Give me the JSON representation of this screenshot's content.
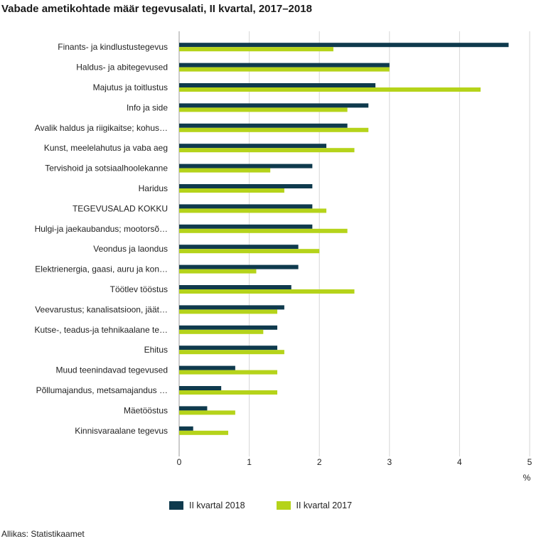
{
  "chart_data": {
    "type": "bar",
    "orientation": "horizontal",
    "title": "Vabade ametikohtade määr tegevusalati, II kvartal, 2017–2018",
    "unit": "%",
    "xlim": [
      0,
      5
    ],
    "xticks": [
      0,
      1,
      2,
      3,
      4,
      5
    ],
    "grid": "vertical",
    "legend_position": "bottom",
    "categories": [
      "Finants- ja kindlustustegevus",
      "Haldus- ja abitegevused",
      "Majutus ja toitlustus",
      "Info ja side",
      "Avalik haldus ja riigikaitse; kohus…",
      "Kunst, meelelahutus ja vaba aeg",
      "Tervishoid ja sotsiaalhoolekanne",
      "Haridus",
      "TEGEVUSALAD KOKKU",
      "Hulgi-ja jaekaubandus; mootorsõ…",
      "Veondus ja laondus",
      "Elektrienergia, gaasi, auru ja kon…",
      "Töötlev tööstus",
      "Veevarustus; kanalisatsioon, jäät…",
      "Kutse-, teadus-ja tehnikaalane te…",
      "Ehitus",
      "Muud teenindavad tegevused",
      "Põllumajandus, metsamajandus …",
      "Mäetööstus",
      "Kinnisvaraalane tegevus"
    ],
    "series": [
      {
        "name": "II kvartal 2018",
        "color": "#0f3a4d",
        "values": [
          4.7,
          3.0,
          2.8,
          2.7,
          2.4,
          2.1,
          1.9,
          1.9,
          1.9,
          1.9,
          1.7,
          1.7,
          1.6,
          1.5,
          1.4,
          1.4,
          0.8,
          0.6,
          0.4,
          0.2
        ]
      },
      {
        "name": "II kvartal 2017",
        "color": "#b5d31a",
        "values": [
          2.2,
          3.0,
          4.3,
          2.4,
          2.7,
          2.5,
          1.3,
          1.5,
          2.1,
          2.4,
          2.0,
          1.1,
          2.5,
          1.4,
          1.2,
          1.5,
          1.4,
          1.4,
          0.8,
          0.7
        ]
      }
    ],
    "source": "Allikas: Statistikaamet"
  }
}
